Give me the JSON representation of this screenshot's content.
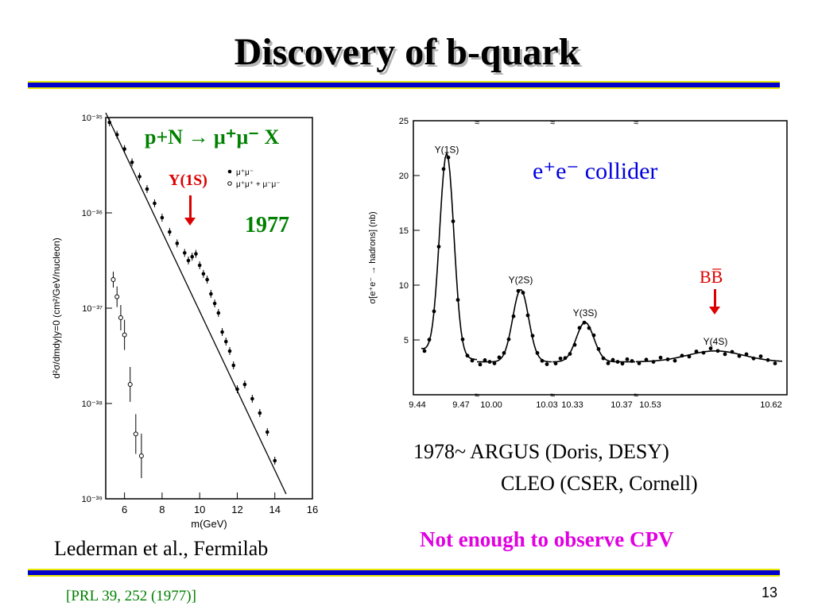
{
  "slide": {
    "title": "Discovery of b-quark",
    "page_number": "13",
    "reference": "[PRL 39, 252 (1977)]"
  },
  "left_figure": {
    "caption": "Lederman et al., Fermilab",
    "reaction": "p+N → μ⁺μ⁻ X",
    "year": "1977",
    "peak_label": "Υ(1S)",
    "legend": [
      "μ⁺μ⁻",
      "μ⁺μ⁺ + μ⁻μ⁻"
    ],
    "xlabel": "m(GeV)",
    "ylabel": "d²σ/dmdy|y=0 (cm²/GeV/nucleon)",
    "colors": {
      "reaction": "#008000",
      "peak": "#dd0000"
    }
  },
  "right_figure": {
    "caption_line1": "1978~  ARGUS (Doris, DESY)",
    "caption_line2": "CLEO  (CSER, Cornell)",
    "collider": "e⁺e⁻ collider",
    "bb_label": "BB̅",
    "note": "Not enough to observe CPV",
    "colors": {
      "collider": "#0000dd",
      "bb": "#dd0000",
      "note": "#e000e0"
    }
  },
  "chart_data": [
    {
      "type": "scatter",
      "xlabel": "m(GeV)",
      "ylabel": "d²σ/dmdy|y=0 (cm²/GeV/nucleon)",
      "xlim": [
        5,
        16
      ],
      "ylim_log10": [
        -39,
        -35
      ],
      "log_y": true,
      "x_ticks": [
        "6",
        "8",
        "10",
        "12",
        "14",
        "16"
      ],
      "y_ticks": [
        "10⁻³⁵",
        "10⁻³⁶",
        "10⁻³⁷",
        "10⁻³⁸",
        "10⁻³⁹"
      ],
      "series": [
        {
          "name": "μ⁺μ⁻",
          "x": [
            5.2,
            5.6,
            6.0,
            6.4,
            6.8,
            7.2,
            7.6,
            8.0,
            8.4,
            8.8,
            9.2,
            9.4,
            9.6,
            9.8,
            10.0,
            10.2,
            10.4,
            10.6,
            10.8,
            11.0,
            11.2,
            11.4,
            11.6,
            11.8,
            12.0,
            12.4,
            12.8,
            13.2,
            13.6,
            14.0
          ],
          "log10y": [
            -35.05,
            -35.18,
            -35.33,
            -35.47,
            -35.62,
            -35.75,
            -35.9,
            -36.05,
            -36.2,
            -36.32,
            -36.42,
            -36.5,
            -36.46,
            -36.43,
            -36.55,
            -36.64,
            -36.7,
            -36.85,
            -36.95,
            -37.05,
            -37.25,
            -37.35,
            -37.45,
            -37.6,
            -37.85,
            -37.8,
            -37.95,
            -38.1,
            -38.3,
            -38.6
          ]
        },
        {
          "name": "μ⁺μ⁺ + μ⁻μ⁻",
          "x": [
            5.4,
            5.6,
            5.8,
            6.0,
            6.3,
            6.6,
            6.9
          ],
          "log10y": [
            -36.7,
            -36.88,
            -37.1,
            -37.28,
            -37.8,
            -38.32,
            -38.55
          ]
        }
      ],
      "fit_line": {
        "x": [
          5.0,
          14.6
        ],
        "log10y": [
          -34.95,
          -38.95
        ]
      }
    },
    {
      "type": "line",
      "ylabel": "σ[e⁺e⁻ → hadrons] (nb)",
      "x_tick_labels": [
        "9.44",
        "9.47",
        "10.00",
        "10.03",
        "10.33",
        "10.37",
        "10.53",
        "10.62"
      ],
      "y_ticks": [
        5,
        10,
        15,
        20,
        25
      ],
      "ylim": [
        0,
        25
      ],
      "peaks": [
        {
          "name": "Υ(1S)",
          "peak": 21.5,
          "segment": "9.44–9.47"
        },
        {
          "name": "Υ(2S)",
          "peak": 9.6,
          "segment": "10.00–10.03"
        },
        {
          "name": "Υ(3S)",
          "peak": 6.6,
          "segment": "10.33–10.37"
        },
        {
          "name": "Υ(4S)",
          "peak": 4.0,
          "segment": "10.53–10.62"
        }
      ],
      "baseline": 3.0
    }
  ]
}
